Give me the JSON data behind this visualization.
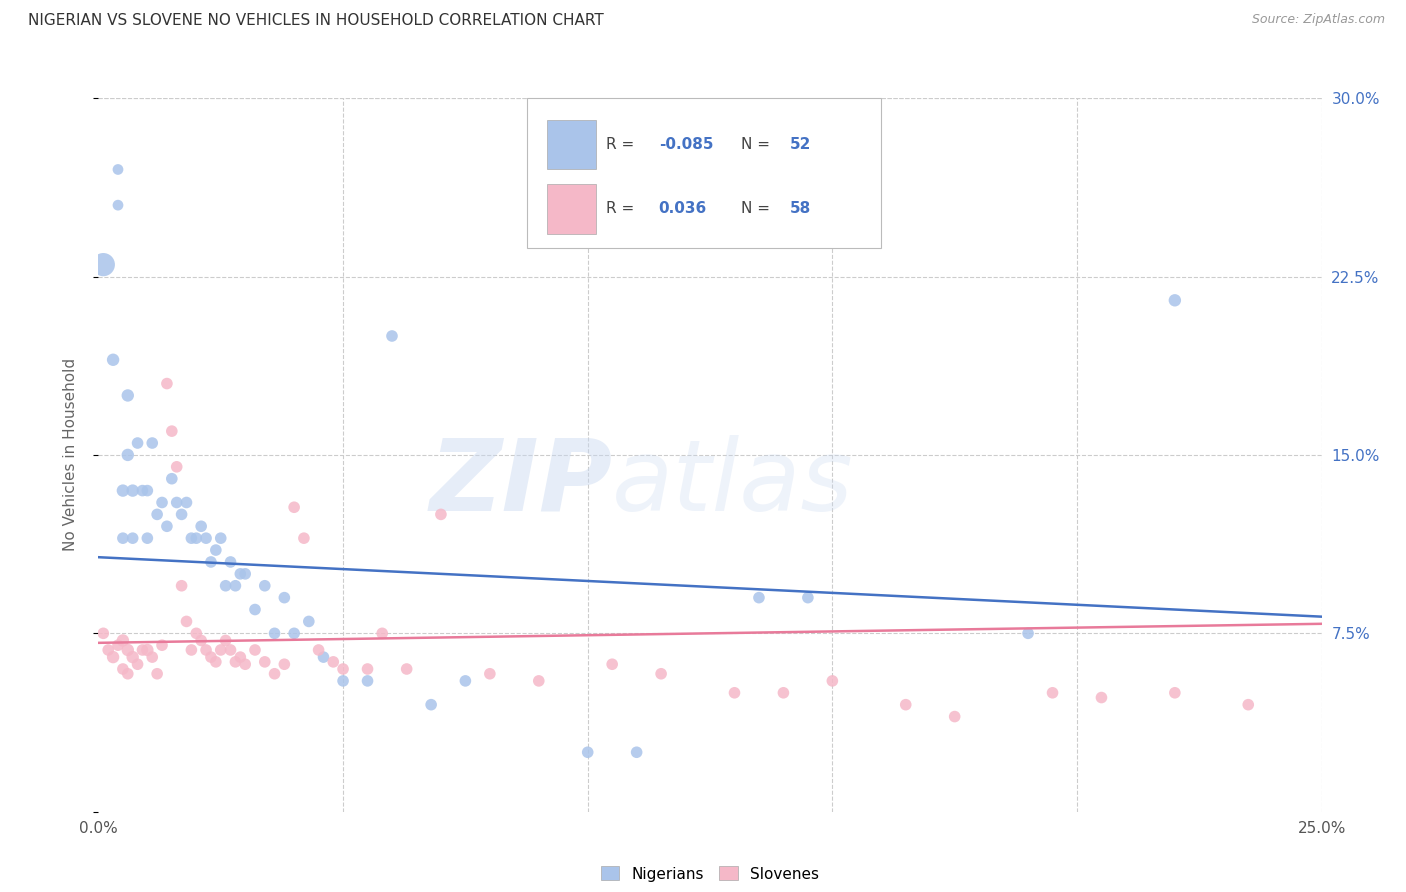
{
  "title": "NIGERIAN VS SLOVENE NO VEHICLES IN HOUSEHOLD CORRELATION CHART",
  "source": "Source: ZipAtlas.com",
  "ylabel": "No Vehicles in Household",
  "xmin": 0.0,
  "xmax": 0.25,
  "ymin": 0.0,
  "ymax": 0.3,
  "color_nigerian": "#aac4ea",
  "color_slovene": "#f5b8c8",
  "line_color_nigerian": "#4472c4",
  "line_color_slovene": "#e87a9a",
  "watermark": "ZIPatlas",
  "nig_line_x0": 0.0,
  "nig_line_y0": 0.107,
  "nig_line_x1": 0.25,
  "nig_line_y1": 0.082,
  "slov_line_x0": 0.0,
  "slov_line_y0": 0.071,
  "slov_line_x1": 0.25,
  "slov_line_y1": 0.079,
  "nigerian_x": [
    0.001,
    0.003,
    0.004,
    0.004,
    0.005,
    0.005,
    0.006,
    0.006,
    0.007,
    0.007,
    0.008,
    0.009,
    0.01,
    0.01,
    0.011,
    0.012,
    0.013,
    0.014,
    0.015,
    0.016,
    0.017,
    0.018,
    0.019,
    0.02,
    0.021,
    0.022,
    0.023,
    0.024,
    0.025,
    0.026,
    0.027,
    0.028,
    0.029,
    0.03,
    0.032,
    0.034,
    0.036,
    0.038,
    0.04,
    0.043,
    0.046,
    0.05,
    0.055,
    0.06,
    0.068,
    0.075,
    0.1,
    0.11,
    0.135,
    0.145,
    0.19,
    0.22
  ],
  "nigerian_y": [
    0.23,
    0.19,
    0.27,
    0.255,
    0.135,
    0.115,
    0.175,
    0.15,
    0.135,
    0.115,
    0.155,
    0.135,
    0.135,
    0.115,
    0.155,
    0.125,
    0.13,
    0.12,
    0.14,
    0.13,
    0.125,
    0.13,
    0.115,
    0.115,
    0.12,
    0.115,
    0.105,
    0.11,
    0.115,
    0.095,
    0.105,
    0.095,
    0.1,
    0.1,
    0.085,
    0.095,
    0.075,
    0.09,
    0.075,
    0.08,
    0.065,
    0.055,
    0.055,
    0.2,
    0.045,
    0.055,
    0.025,
    0.025,
    0.09,
    0.09,
    0.075,
    0.215
  ],
  "nigerian_sizes": [
    280,
    80,
    60,
    60,
    80,
    70,
    80,
    80,
    80,
    70,
    70,
    70,
    70,
    70,
    70,
    70,
    70,
    70,
    70,
    70,
    70,
    70,
    70,
    70,
    70,
    70,
    70,
    70,
    70,
    70,
    70,
    70,
    70,
    70,
    70,
    70,
    70,
    70,
    70,
    70,
    70,
    70,
    70,
    70,
    70,
    70,
    70,
    70,
    70,
    70,
    70,
    80
  ],
  "slovene_x": [
    0.001,
    0.002,
    0.003,
    0.004,
    0.005,
    0.005,
    0.006,
    0.006,
    0.007,
    0.008,
    0.009,
    0.01,
    0.011,
    0.012,
    0.013,
    0.014,
    0.015,
    0.016,
    0.017,
    0.018,
    0.019,
    0.02,
    0.021,
    0.022,
    0.023,
    0.024,
    0.025,
    0.026,
    0.027,
    0.028,
    0.029,
    0.03,
    0.032,
    0.034,
    0.036,
    0.038,
    0.04,
    0.042,
    0.045,
    0.048,
    0.05,
    0.055,
    0.058,
    0.063,
    0.07,
    0.08,
    0.09,
    0.105,
    0.115,
    0.13,
    0.14,
    0.15,
    0.165,
    0.175,
    0.195,
    0.205,
    0.22,
    0.235
  ],
  "slovene_y": [
    0.075,
    0.068,
    0.065,
    0.07,
    0.072,
    0.06,
    0.068,
    0.058,
    0.065,
    0.062,
    0.068,
    0.068,
    0.065,
    0.058,
    0.07,
    0.18,
    0.16,
    0.145,
    0.095,
    0.08,
    0.068,
    0.075,
    0.072,
    0.068,
    0.065,
    0.063,
    0.068,
    0.072,
    0.068,
    0.063,
    0.065,
    0.062,
    0.068,
    0.063,
    0.058,
    0.062,
    0.128,
    0.115,
    0.068,
    0.063,
    0.06,
    0.06,
    0.075,
    0.06,
    0.125,
    0.058,
    0.055,
    0.062,
    0.058,
    0.05,
    0.05,
    0.055,
    0.045,
    0.04,
    0.05,
    0.048,
    0.05,
    0.045
  ],
  "slovene_sizes": [
    70,
    70,
    80,
    70,
    80,
    70,
    80,
    70,
    80,
    70,
    70,
    80,
    70,
    70,
    70,
    70,
    70,
    70,
    70,
    70,
    70,
    70,
    70,
    70,
    70,
    70,
    70,
    70,
    70,
    70,
    70,
    70,
    70,
    70,
    70,
    70,
    70,
    70,
    70,
    70,
    70,
    70,
    70,
    70,
    70,
    70,
    70,
    70,
    70,
    70,
    70,
    70,
    70,
    70,
    70,
    70,
    70,
    70
  ]
}
